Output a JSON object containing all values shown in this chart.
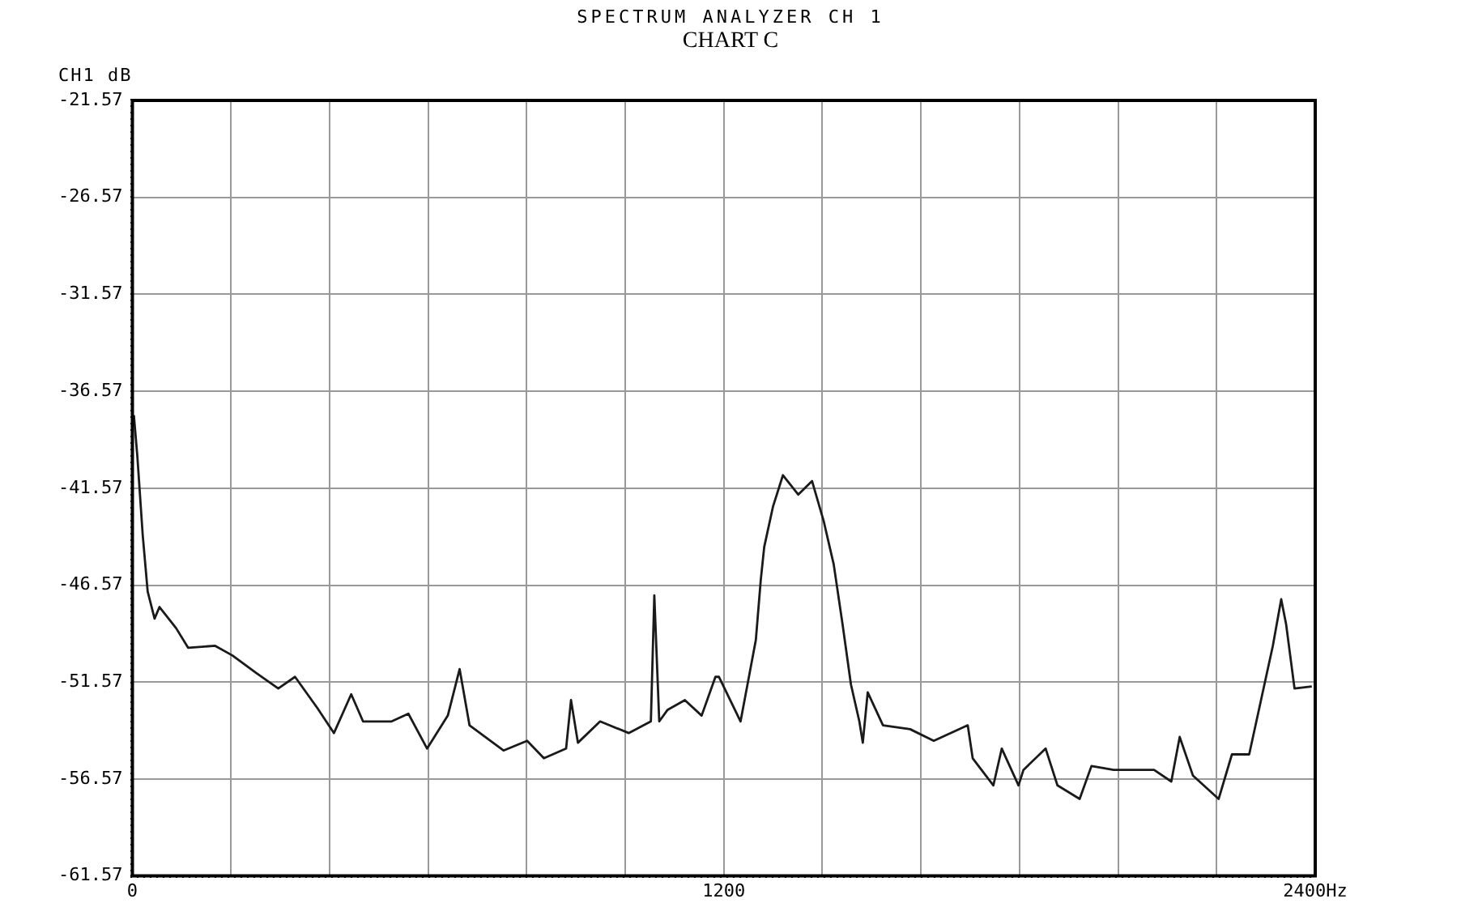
{
  "chart_data": {
    "type": "line",
    "title": "SPECTRUM ANALYZER CH 1",
    "subtitle": "CHART C",
    "ylabel": "CH1 dB",
    "x": [
      3,
      10,
      21,
      31,
      45,
      55,
      89,
      113,
      168,
      203,
      251,
      296,
      330,
      375,
      409,
      444,
      468,
      526,
      560,
      598,
      640,
      664,
      684,
      753,
      801,
      835,
      880,
      890,
      904,
      949,
      1007,
      1052,
      1059,
      1069,
      1086,
      1121,
      1155,
      1183,
      1190,
      1234,
      1265,
      1275,
      1282,
      1300,
      1320,
      1351,
      1379,
      1403,
      1423,
      1441,
      1458,
      1475,
      1482,
      1492,
      1523,
      1578,
      1626,
      1695,
      1705,
      1747,
      1764,
      1798,
      1808,
      1853,
      1877,
      1922,
      1946,
      1991,
      2039,
      2073,
      2108,
      2125,
      2152,
      2204,
      2231,
      2266,
      2290,
      2314,
      2331,
      2341,
      2358,
      2393
    ],
    "series": [
      {
        "color": "#1a1a1a",
        "values": [
          -37.8,
          -39.9,
          -44.0,
          -46.9,
          -48.3,
          -47.7,
          -48.8,
          -49.8,
          -49.7,
          -50.2,
          -51.1,
          -51.9,
          -51.3,
          -52.9,
          -54.2,
          -52.2,
          -53.6,
          -53.6,
          -53.2,
          -55.0,
          -53.3,
          -50.9,
          -53.8,
          -55.1,
          -54.6,
          -55.5,
          -55.0,
          -52.5,
          -54.7,
          -53.6,
          -54.2,
          -53.6,
          -47.1,
          -53.6,
          -53.0,
          -52.5,
          -53.3,
          -51.3,
          -51.3,
          -53.6,
          -49.4,
          -46.3,
          -44.6,
          -42.5,
          -40.9,
          -41.9,
          -41.2,
          -43.3,
          -45.5,
          -48.6,
          -51.7,
          -53.6,
          -54.7,
          -52.1,
          -53.8,
          -54.0,
          -54.6,
          -53.8,
          -55.5,
          -56.9,
          -55.0,
          -56.9,
          -56.1,
          -55.0,
          -56.9,
          -57.6,
          -55.9,
          -56.1,
          -56.1,
          -56.1,
          -56.7,
          -54.4,
          -56.4,
          -57.6,
          -55.3,
          -55.3,
          -52.5,
          -49.7,
          -47.3,
          -48.6,
          -51.9,
          -51.8
        ]
      }
    ],
    "xlim": [
      0,
      2400
    ],
    "xticks": [
      0,
      {
        "value": 200,
        "label": null
      },
      {
        "value": 400,
        "label": null
      },
      {
        "value": 600,
        "label": null
      },
      {
        "value": 800,
        "label": null
      },
      {
        "value": 1000,
        "label": null
      },
      1200,
      {
        "value": 1400,
        "label": null
      },
      {
        "value": 1600,
        "label": null
      },
      {
        "value": 1800,
        "label": null
      },
      {
        "value": 2000,
        "label": null
      },
      {
        "value": 2200,
        "label": null
      },
      {
        "value": 2400,
        "label": "2400Hz"
      }
    ],
    "ylim": [
      -61.57,
      -21.57
    ],
    "yticks": [
      -61.57,
      -56.57,
      -51.57,
      -46.57,
      -41.57,
      -36.57,
      -31.57,
      -26.57,
      -21.57
    ],
    "grid": true,
    "legend": false,
    "marker": "none",
    "line_style": "solid"
  }
}
